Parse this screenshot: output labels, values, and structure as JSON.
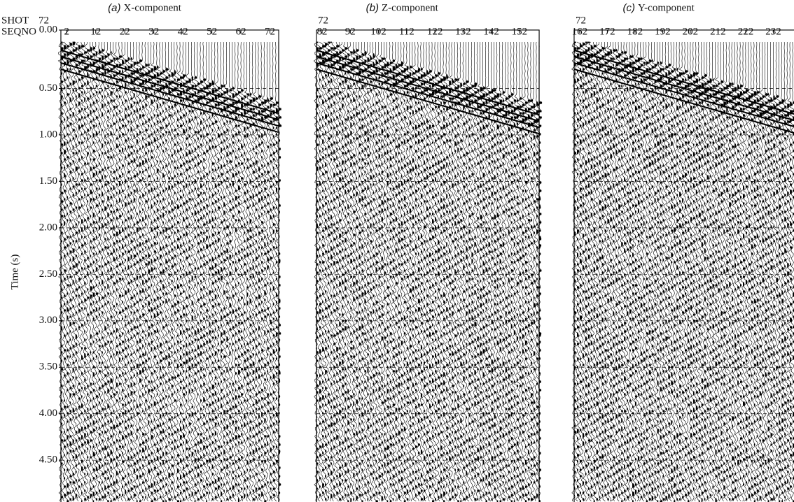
{
  "chart_data": [
    {
      "type": "seismic",
      "panel_letter": "(a)",
      "title": "X-component",
      "shot_label": "SHOT",
      "shot": "72",
      "seqno_label": "SEQNO",
      "ylabel": "Time (s)",
      "xlim": [
        0,
        75
      ],
      "xticks": [
        2,
        12,
        22,
        32,
        42,
        52,
        62,
        72
      ],
      "ylim": [
        0,
        4.95
      ],
      "yticks": [
        {
          "value": 0,
          "label": "0.00"
        },
        {
          "value": 0.5,
          "label": "0.50"
        },
        {
          "value": 1,
          "label": "1.00"
        },
        {
          "value": 1.5,
          "label": "1.50"
        },
        {
          "value": 2,
          "label": "2.00"
        },
        {
          "value": 2.5,
          "label": "2.50"
        },
        {
          "value": 3,
          "label": "3.00"
        },
        {
          "value": 3.5,
          "label": "3.50"
        },
        {
          "value": 4,
          "label": "4.00"
        },
        {
          "value": 4.5,
          "label": "4.50"
        }
      ],
      "grid": true
    },
    {
      "type": "seismic",
      "panel_letter": "(b)",
      "title": "Z-component",
      "shot": "72",
      "xlim": [
        80,
        159
      ],
      "xticks": [
        82,
        92,
        102,
        112,
        122,
        132,
        142,
        152
      ],
      "ylim": [
        0,
        4.95
      ],
      "grid": true
    },
    {
      "type": "seismic",
      "panel_letter": "(c)",
      "title": "Y-component",
      "shot": "72",
      "xlim": [
        160,
        241
      ],
      "xticks": [
        162,
        172,
        182,
        192,
        202,
        212,
        222,
        232
      ],
      "ylim": [
        0,
        4.95
      ],
      "grid": true
    }
  ]
}
